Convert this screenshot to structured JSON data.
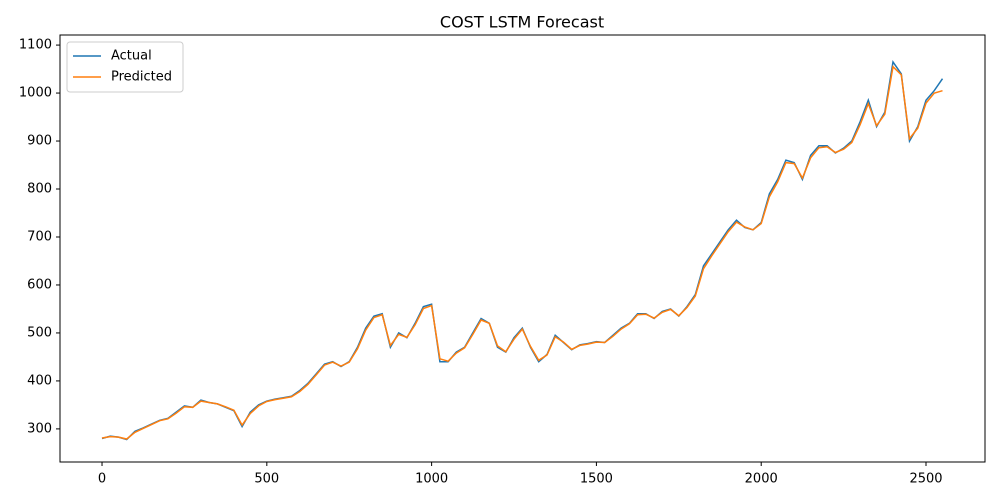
{
  "chart_data": {
    "type": "line",
    "title": "COST LSTM Forecast",
    "x": [
      0,
      25,
      50,
      75,
      100,
      125,
      150,
      175,
      200,
      225,
      250,
      275,
      300,
      325,
      350,
      375,
      400,
      425,
      450,
      475,
      500,
      525,
      550,
      575,
      600,
      625,
      650,
      675,
      700,
      725,
      750,
      775,
      800,
      825,
      850,
      875,
      900,
      925,
      950,
      975,
      1000,
      1025,
      1050,
      1075,
      1100,
      1125,
      1150,
      1175,
      1200,
      1225,
      1250,
      1275,
      1300,
      1325,
      1350,
      1375,
      1400,
      1425,
      1450,
      1475,
      1500,
      1525,
      1550,
      1575,
      1600,
      1625,
      1650,
      1675,
      1700,
      1725,
      1750,
      1775,
      1800,
      1825,
      1850,
      1875,
      1900,
      1925,
      1950,
      1975,
      2000,
      2025,
      2050,
      2075,
      2100,
      2125,
      2150,
      2175,
      2200,
      2225,
      2250,
      2275,
      2300,
      2325,
      2350,
      2375,
      2400,
      2425,
      2450,
      2475,
      2500,
      2525,
      2550
    ],
    "series": [
      {
        "name": "Actual",
        "color": "#1f77b4",
        "values": [
          280,
          285,
          283,
          278,
          295,
          302,
          310,
          318,
          322,
          335,
          348,
          345,
          360,
          355,
          352,
          345,
          338,
          305,
          335,
          350,
          358,
          362,
          365,
          368,
          380,
          395,
          415,
          435,
          440,
          430,
          440,
          470,
          510,
          535,
          540,
          470,
          500,
          490,
          520,
          555,
          560,
          440,
          440,
          460,
          470,
          500,
          530,
          520,
          470,
          460,
          490,
          510,
          470,
          440,
          455,
          495,
          480,
          465,
          475,
          478,
          482,
          480,
          495,
          510,
          520,
          540,
          540,
          530,
          545,
          550,
          535,
          555,
          580,
          640,
          665,
          690,
          715,
          735,
          720,
          715,
          730,
          790,
          820,
          860,
          855,
          820,
          870,
          890,
          890,
          875,
          885,
          900,
          940,
          985,
          930,
          960,
          1065,
          1040,
          900,
          930,
          985,
          1005,
          1030
        ]
      },
      {
        "name": "Predicted",
        "color": "#ff7f0e",
        "values": [
          281,
          284,
          283,
          279,
          293,
          301,
          309,
          317,
          321,
          333,
          346,
          345,
          358,
          355,
          352,
          346,
          339,
          308,
          332,
          348,
          357,
          361,
          364,
          367,
          378,
          393,
          413,
          433,
          439,
          431,
          439,
          467,
          506,
          532,
          538,
          474,
          497,
          491,
          517,
          551,
          557,
          446,
          441,
          458,
          469,
          497,
          527,
          520,
          473,
          461,
          487,
          508,
          472,
          443,
          454,
          492,
          481,
          466,
          474,
          477,
          481,
          480,
          493,
          508,
          519,
          538,
          539,
          531,
          543,
          549,
          536,
          553,
          577,
          634,
          661,
          686,
          711,
          731,
          721,
          715,
          728,
          784,
          815,
          855,
          853,
          823,
          865,
          886,
          888,
          876,
          883,
          897,
          934,
          978,
          932,
          956,
          1055,
          1038,
          905,
          927,
          979,
          1000,
          1005
        ]
      }
    ],
    "xlim": [
      -127.5,
      2679
    ],
    "ylim": [
      231,
      1121
    ],
    "xticks": [
      0,
      500,
      1000,
      1500,
      2000,
      2500
    ],
    "yticks": [
      300,
      400,
      500,
      600,
      700,
      800,
      900,
      1000,
      1100
    ],
    "legend": "upper left"
  }
}
